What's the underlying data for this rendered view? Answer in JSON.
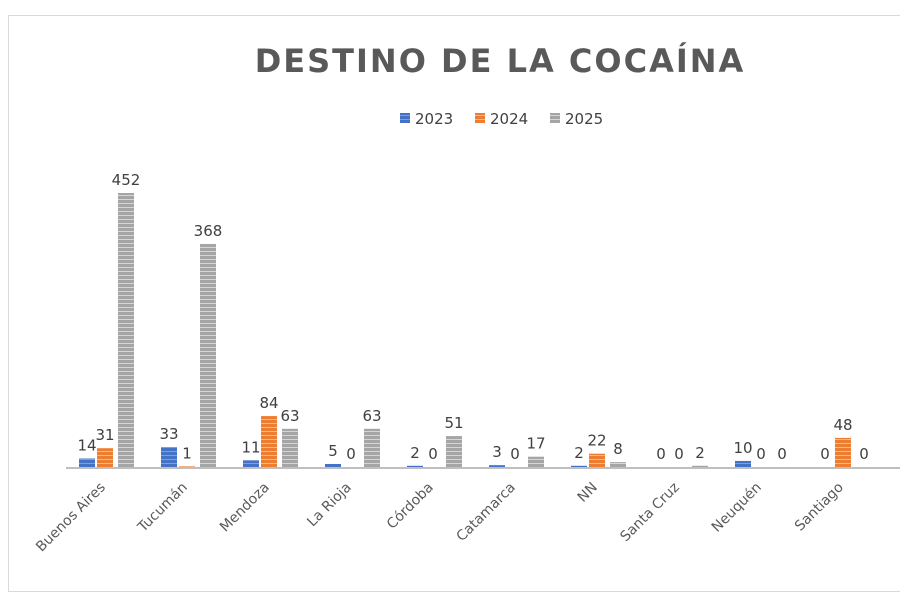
{
  "chart_data": {
    "type": "bar",
    "title": "DESTINO DE LA COCAÍNA",
    "categories": [
      "Buenos Aires",
      "Tucumán",
      "Mendoza",
      "La Rioja",
      "Córdoba",
      "Catamarca",
      "NN",
      "Santa Cruz",
      "Neuquén",
      "Santiago"
    ],
    "series": [
      {
        "name": "2023",
        "color": "#4472c4",
        "values": [
          14,
          33,
          11,
          5,
          2,
          3,
          2,
          0,
          10,
          0
        ]
      },
      {
        "name": "2024",
        "color": "#ed7d31",
        "values": [
          31,
          1,
          84,
          0,
          0,
          0,
          22,
          0,
          0,
          48
        ]
      },
      {
        "name": "2025",
        "color": "#a5a5a5",
        "values": [
          452,
          368,
          63,
          63,
          51,
          17,
          8,
          2,
          0,
          0
        ]
      }
    ],
    "legend_position": "top",
    "grid": false,
    "data_labels": true,
    "ylim": [
      0,
      460
    ]
  }
}
